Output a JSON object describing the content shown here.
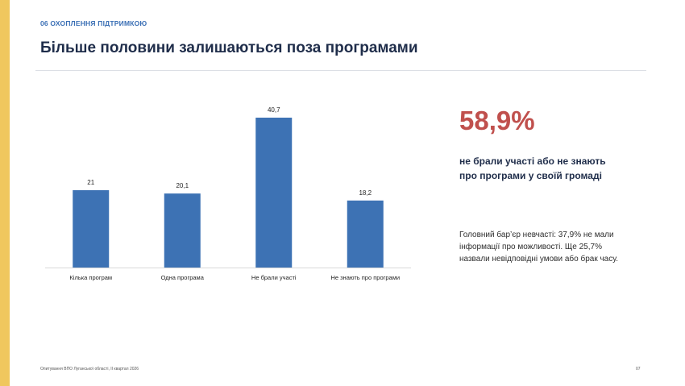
{
  "section": "06  ОХОПЛЕННЯ ПІДТРИМКОЮ",
  "title": "Більше половини залишаються поза програмами",
  "highlight": {
    "value": "58,9%",
    "caption": "не брали участі або не знають про програми у своїй громаді"
  },
  "note": "Головний бар’єр невчасті: 37,9% не мали інформації про можливості. Ще 25,7% назвали невідповідні умови або брак часу.",
  "footer": {
    "source": "Опитування ВПО Луганської області, II квартал 2026",
    "page": "07"
  },
  "colors": {
    "bar": "#3d72b4",
    "accent": "#f0c75e",
    "highlight": "#c0504d",
    "title": "#1f2d4a"
  },
  "chart_data": {
    "type": "bar",
    "categories": [
      "Кілька програм",
      "Одна програма",
      "Не брали участі",
      "Не знають про програми"
    ],
    "values": [
      21,
      20.1,
      40.7,
      18.2
    ],
    "value_labels": [
      "21",
      "20,1",
      "40,7",
      "18,2"
    ],
    "ylim": [
      0,
      40.7
    ],
    "grid": false,
    "legend": "none"
  }
}
